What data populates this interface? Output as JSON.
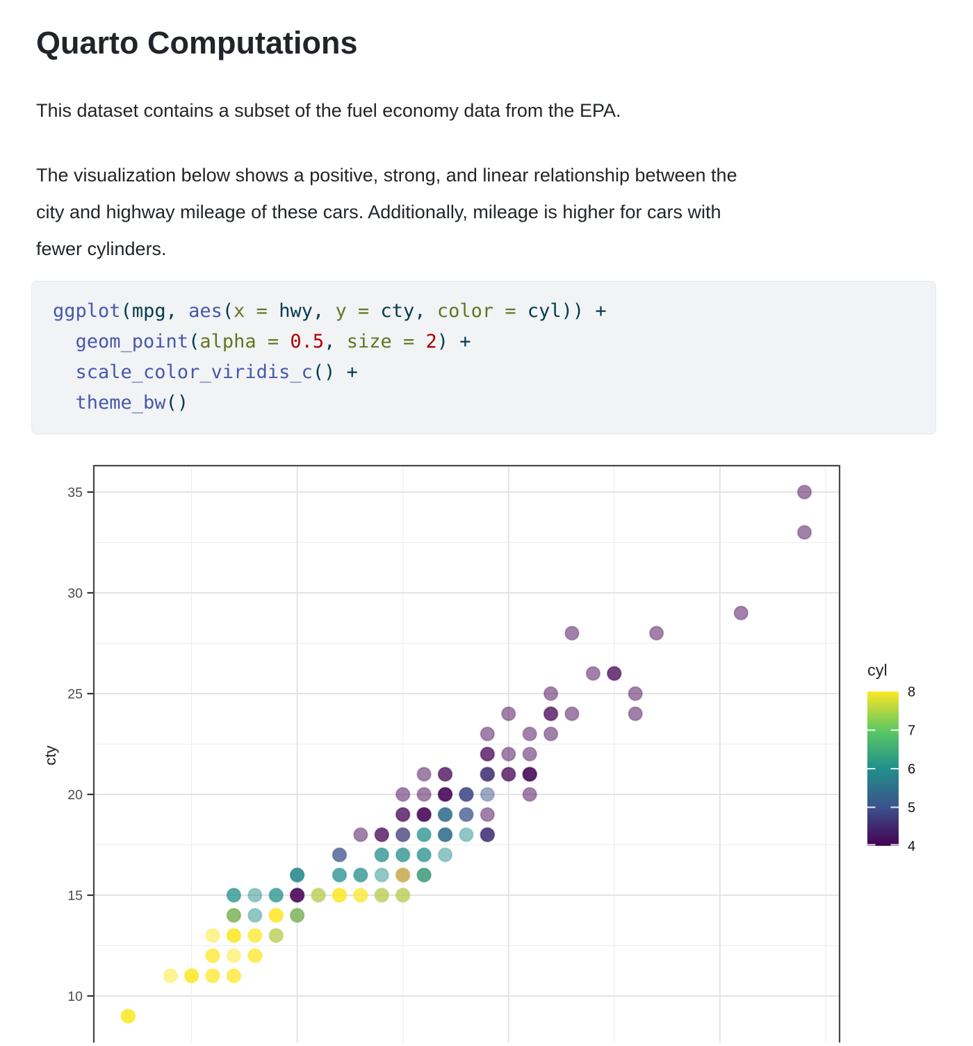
{
  "page": {
    "title": "Quarto Computations",
    "paragraph1": "This dataset contains a subset of the fuel economy data from the EPA.",
    "paragraph2_lines": [
      "The visualization below shows a positive, strong, and linear relationship between the",
      "city and highway mileage of these cars. Additionally, mileage is higher for cars with",
      "fewer cylinders."
    ]
  },
  "code_block": {
    "colors": {
      "fn": "#4758AB",
      "df": "#003B4F",
      "at": "#657422",
      "nu": "#AD0000"
    },
    "lines": [
      [
        {
          "t": "ggplot",
          "c": "fn"
        },
        {
          "t": "(",
          "c": "df"
        },
        {
          "t": "mpg",
          "c": "df"
        },
        {
          "t": ", ",
          "c": "df"
        },
        {
          "t": "aes",
          "c": "fn"
        },
        {
          "t": "(",
          "c": "df"
        },
        {
          "t": "x = ",
          "c": "at"
        },
        {
          "t": "hwy",
          "c": "df"
        },
        {
          "t": ", ",
          "c": "df"
        },
        {
          "t": "y = ",
          "c": "at"
        },
        {
          "t": "cty",
          "c": "df"
        },
        {
          "t": ", ",
          "c": "df"
        },
        {
          "t": "color = ",
          "c": "at"
        },
        {
          "t": "cyl",
          "c": "df"
        },
        {
          "t": ")) +",
          "c": "df"
        }
      ],
      [
        {
          "t": "  ",
          "c": "df"
        },
        {
          "t": "geom_point",
          "c": "fn"
        },
        {
          "t": "(",
          "c": "df"
        },
        {
          "t": "alpha = ",
          "c": "at"
        },
        {
          "t": "0.5",
          "c": "nu"
        },
        {
          "t": ", ",
          "c": "df"
        },
        {
          "t": "size = ",
          "c": "at"
        },
        {
          "t": "2",
          "c": "nu"
        },
        {
          "t": ") +",
          "c": "df"
        }
      ],
      [
        {
          "t": "  ",
          "c": "df"
        },
        {
          "t": "scale_color_viridis_c",
          "c": "fn"
        },
        {
          "t": "() +",
          "c": "df"
        }
      ],
      [
        {
          "t": "  ",
          "c": "df"
        },
        {
          "t": "theme_bw",
          "c": "fn"
        },
        {
          "t": "()",
          "c": "df"
        }
      ]
    ]
  },
  "chart_data": {
    "type": "scatter",
    "title": "",
    "x": "hwy",
    "y": "cty",
    "color": "cyl",
    "alpha": 0.5,
    "x_axis": {
      "label": "",
      "domain": [
        10.4,
        45.65
      ],
      "major_breaks": [
        20,
        30,
        40
      ],
      "minor_breaks": [
        15,
        25,
        35,
        45
      ],
      "tick_labels_visible": false
    },
    "y_axis": {
      "label": "cty",
      "domain": [
        7.7,
        36.3
      ],
      "major_breaks": [
        10,
        15,
        20,
        25,
        30,
        35
      ],
      "minor_breaks": [
        12.5,
        17.5,
        22.5,
        27.5,
        32.5
      ],
      "tick_labels_visible": true
    },
    "legend": {
      "title": "cyl",
      "min": 4,
      "max": 8,
      "labels": [
        "8",
        "7",
        "6",
        "5",
        "4"
      ],
      "label_values": [
        8,
        7,
        6,
        5,
        4
      ],
      "tick_values": [
        7,
        6,
        5,
        4
      ],
      "viridis": {
        "4": "#440154",
        "5": "#3B528B",
        "6": "#21908C",
        "7": "#5DC863",
        "8": "#FDE725"
      }
    },
    "points": [
      {
        "hwy": 44,
        "cty": 35,
        "cyl": [
          4
        ]
      },
      {
        "hwy": 44,
        "cty": 33,
        "cyl": [
          4
        ]
      },
      {
        "hwy": 41,
        "cty": 29,
        "cyl": [
          4
        ]
      },
      {
        "hwy": 33,
        "cty": 28,
        "cyl": [
          4
        ]
      },
      {
        "hwy": 37,
        "cty": 28,
        "cyl": [
          4
        ]
      },
      {
        "hwy": 34,
        "cty": 26,
        "cyl": [
          4
        ]
      },
      {
        "hwy": 35,
        "cty": 26,
        "cyl": [
          4,
          4
        ]
      },
      {
        "hwy": 32,
        "cty": 25,
        "cyl": [
          4
        ]
      },
      {
        "hwy": 36,
        "cty": 25,
        "cyl": [
          4
        ]
      },
      {
        "hwy": 30,
        "cty": 24,
        "cyl": [
          4
        ]
      },
      {
        "hwy": 32,
        "cty": 24,
        "cyl": [
          4,
          4
        ]
      },
      {
        "hwy": 33,
        "cty": 24,
        "cyl": [
          4
        ]
      },
      {
        "hwy": 36,
        "cty": 24,
        "cyl": [
          4
        ]
      },
      {
        "hwy": 29,
        "cty": 23,
        "cyl": [
          4
        ]
      },
      {
        "hwy": 31,
        "cty": 23,
        "cyl": [
          4
        ]
      },
      {
        "hwy": 32,
        "cty": 23,
        "cyl": [
          4
        ]
      },
      {
        "hwy": 29,
        "cty": 22,
        "cyl": [
          4,
          4
        ]
      },
      {
        "hwy": 30,
        "cty": 22,
        "cyl": [
          4
        ]
      },
      {
        "hwy": 31,
        "cty": 22,
        "cyl": [
          4
        ]
      },
      {
        "hwy": 26,
        "cty": 21,
        "cyl": [
          4
        ]
      },
      {
        "hwy": 27,
        "cty": 21,
        "cyl": [
          4,
          4
        ]
      },
      {
        "hwy": 29,
        "cty": 21,
        "cyl": [
          4,
          4,
          5
        ]
      },
      {
        "hwy": 30,
        "cty": 21,
        "cyl": [
          4,
          4
        ]
      },
      {
        "hwy": 31,
        "cty": 21,
        "cyl": [
          4,
          4,
          4
        ]
      },
      {
        "hwy": 25,
        "cty": 20,
        "cyl": [
          4
        ]
      },
      {
        "hwy": 26,
        "cty": 20,
        "cyl": [
          4
        ]
      },
      {
        "hwy": 27,
        "cty": 20,
        "cyl": [
          4,
          4,
          4
        ]
      },
      {
        "hwy": 28,
        "cty": 20,
        "cyl": [
          4,
          5,
          5
        ]
      },
      {
        "hwy": 29,
        "cty": 20,
        "cyl": [
          5
        ]
      },
      {
        "hwy": 31,
        "cty": 20,
        "cyl": [
          4
        ]
      },
      {
        "hwy": 25,
        "cty": 19,
        "cyl": [
          4,
          4
        ]
      },
      {
        "hwy": 26,
        "cty": 19,
        "cyl": [
          4,
          4,
          4
        ]
      },
      {
        "hwy": 27,
        "cty": 19,
        "cyl": [
          6,
          6,
          5
        ]
      },
      {
        "hwy": 28,
        "cty": 19,
        "cyl": [
          5,
          5
        ]
      },
      {
        "hwy": 29,
        "cty": 19,
        "cyl": [
          4
        ]
      },
      {
        "hwy": 23,
        "cty": 18,
        "cyl": [
          4
        ]
      },
      {
        "hwy": 24,
        "cty": 18,
        "cyl": [
          4,
          4
        ]
      },
      {
        "hwy": 25,
        "cty": 18,
        "cyl": [
          4,
          5
        ]
      },
      {
        "hwy": 26,
        "cty": 18,
        "cyl": [
          6,
          6
        ]
      },
      {
        "hwy": 27,
        "cty": 18,
        "cyl": [
          6,
          6,
          5
        ]
      },
      {
        "hwy": 28,
        "cty": 18,
        "cyl": [
          6
        ]
      },
      {
        "hwy": 29,
        "cty": 18,
        "cyl": [
          4,
          4,
          5
        ]
      },
      {
        "hwy": 22,
        "cty": 17,
        "cyl": [
          5,
          5
        ]
      },
      {
        "hwy": 24,
        "cty": 17,
        "cyl": [
          6,
          6
        ]
      },
      {
        "hwy": 25,
        "cty": 17,
        "cyl": [
          6,
          6
        ]
      },
      {
        "hwy": 26,
        "cty": 17,
        "cyl": [
          6,
          6
        ]
      },
      {
        "hwy": 27,
        "cty": 17,
        "cyl": [
          6
        ]
      },
      {
        "hwy": 20,
        "cty": 16,
        "cyl": [
          5,
          6,
          6
        ]
      },
      {
        "hwy": 22,
        "cty": 16,
        "cyl": [
          6,
          6
        ]
      },
      {
        "hwy": 23,
        "cty": 16,
        "cyl": [
          6,
          6
        ]
      },
      {
        "hwy": 24,
        "cty": 16,
        "cyl": [
          6
        ]
      },
      {
        "hwy": 25,
        "cty": 16,
        "cyl": [
          4,
          8
        ]
      },
      {
        "hwy": 26,
        "cty": 16,
        "cyl": [
          8,
          6,
          6
        ]
      },
      {
        "hwy": 17,
        "cty": 15,
        "cyl": [
          6,
          6
        ]
      },
      {
        "hwy": 18,
        "cty": 15,
        "cyl": [
          6
        ]
      },
      {
        "hwy": 19,
        "cty": 15,
        "cyl": [
          6,
          6
        ]
      },
      {
        "hwy": 20,
        "cty": 15,
        "cyl": [
          4,
          4,
          4
        ]
      },
      {
        "hwy": 21,
        "cty": 15,
        "cyl": [
          6,
          8
        ]
      },
      {
        "hwy": 22,
        "cty": 15,
        "cyl": [
          8,
          8,
          8
        ]
      },
      {
        "hwy": 23,
        "cty": 15,
        "cyl": [
          8,
          8
        ]
      },
      {
        "hwy": 24,
        "cty": 15,
        "cyl": [
          6,
          8
        ]
      },
      {
        "hwy": 25,
        "cty": 15,
        "cyl": [
          6,
          8
        ]
      },
      {
        "hwy": 17,
        "cty": 14,
        "cyl": [
          8,
          8,
          6
        ]
      },
      {
        "hwy": 18,
        "cty": 14,
        "cyl": [
          6
        ]
      },
      {
        "hwy": 19,
        "cty": 14,
        "cyl": [
          8,
          8,
          8
        ]
      },
      {
        "hwy": 20,
        "cty": 14,
        "cyl": [
          8,
          8,
          6
        ]
      },
      {
        "hwy": 16,
        "cty": 13,
        "cyl": [
          8
        ]
      },
      {
        "hwy": 17,
        "cty": 13,
        "cyl": [
          8,
          8,
          8
        ]
      },
      {
        "hwy": 18,
        "cty": 13,
        "cyl": [
          8,
          8
        ]
      },
      {
        "hwy": 19,
        "cty": 13,
        "cyl": [
          6,
          8
        ]
      },
      {
        "hwy": 16,
        "cty": 12,
        "cyl": [
          8,
          8
        ]
      },
      {
        "hwy": 17,
        "cty": 12,
        "cyl": [
          8
        ]
      },
      {
        "hwy": 18,
        "cty": 12,
        "cyl": [
          8,
          8
        ]
      },
      {
        "hwy": 14,
        "cty": 11,
        "cyl": [
          8
        ]
      },
      {
        "hwy": 15,
        "cty": 11,
        "cyl": [
          8,
          8,
          8
        ]
      },
      {
        "hwy": 16,
        "cty": 11,
        "cyl": [
          8,
          8
        ]
      },
      {
        "hwy": 17,
        "cty": 11,
        "cyl": [
          8,
          8
        ]
      },
      {
        "hwy": 12,
        "cty": 9,
        "cyl": [
          8,
          8,
          8
        ]
      }
    ]
  }
}
